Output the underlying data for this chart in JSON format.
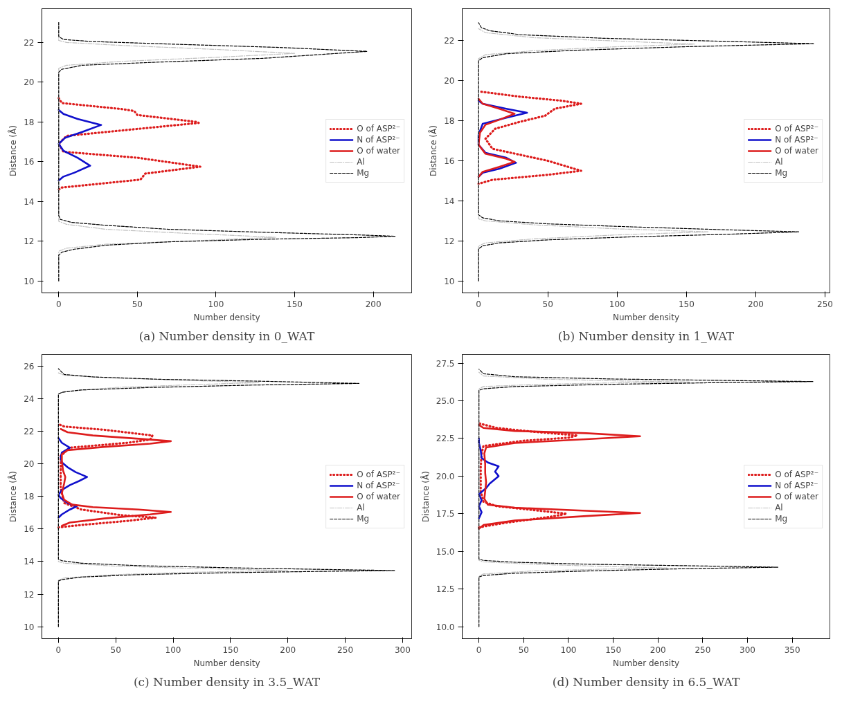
{
  "chart_data": [
    {
      "type": "line",
      "title": "(a) Number density in 0_WAT",
      "xlabel": "Number density",
      "ylabel": "Distance (Å)",
      "xlim": [
        -10.7,
        224.4
      ],
      "ylim": [
        9.4,
        23.7
      ],
      "xticks": [
        0,
        50,
        100,
        150,
        200
      ],
      "yticks": [
        10,
        12,
        14,
        16,
        18,
        20,
        22
      ],
      "grid": false,
      "legend": "right",
      "series": [
        {
          "name": "O of ASP²⁻",
          "color": "#dd1c1c",
          "line_style": "dotted",
          "x": [
            0,
            2,
            40,
            48,
            50,
            88,
            89,
            5,
            0,
            3,
            50,
            90,
            55,
            52,
            2,
            0
          ],
          "values": [
            19.2,
            18.95,
            18.65,
            18.55,
            18.35,
            18.0,
            17.95,
            17.3,
            16.9,
            16.5,
            16.2,
            15.75,
            15.4,
            15.1,
            14.7,
            14.6
          ]
        },
        {
          "name": "N of ASP²⁻",
          "color": "#1010cc",
          "line_style": "solid",
          "x": [
            0,
            3,
            12,
            27,
            15,
            4,
            0,
            3,
            12,
            20,
            10,
            3,
            0
          ],
          "values": [
            18.6,
            18.4,
            18.15,
            17.85,
            17.5,
            17.2,
            16.9,
            16.55,
            16.2,
            15.8,
            15.45,
            15.25,
            15.05
          ]
        },
        {
          "name": "O of water",
          "color": "#dd1c1c",
          "line_style": "solid"
        },
        {
          "name": "Al",
          "color": "#bfbfbf",
          "line_style": "dashdot",
          "x": [
            0,
            0,
            5,
            30,
            80,
            138,
            80,
            30,
            5,
            0,
            0,
            5,
            40,
            100,
            150,
            100,
            40,
            5,
            0,
            0
          ],
          "values": [
            10,
            11.5,
            11.65,
            11.85,
            12.0,
            12.2,
            12.4,
            12.6,
            12.85,
            13.0,
            20.7,
            20.85,
            21.05,
            21.25,
            21.45,
            21.65,
            21.85,
            22.0,
            22.1,
            23.0
          ]
        },
        {
          "name": "Mg",
          "color": "#000000",
          "line_style": "dashed",
          "x": [
            0,
            0,
            2,
            10,
            30,
            70,
            130,
            190,
            214,
            190,
            130,
            70,
            30,
            8,
            1,
            0,
            0,
            2,
            15,
            60,
            130,
            196,
            140,
            70,
            20,
            3,
            0,
            0
          ],
          "values": [
            10,
            11.3,
            11.45,
            11.6,
            11.8,
            11.97,
            12.1,
            12.18,
            12.25,
            12.32,
            12.45,
            12.6,
            12.8,
            12.95,
            13.1,
            13.3,
            20.5,
            20.65,
            20.85,
            21.0,
            21.2,
            21.55,
            21.75,
            21.92,
            22.05,
            22.15,
            22.3,
            23.0
          ]
        }
      ]
    },
    {
      "type": "line",
      "title": "(b) Number density in 1_WAT",
      "xlabel": "Number density",
      "ylabel": "Distance (Å)",
      "xlim": [
        -11.8,
        253.5
      ],
      "ylim": [
        9.4,
        23.6
      ],
      "xticks": [
        0,
        50,
        100,
        150,
        200,
        250
      ],
      "yticks": [
        10,
        12,
        14,
        16,
        18,
        20,
        22
      ],
      "grid": false,
      "legend": "right",
      "series": [
        {
          "name": "O of ASP²⁻",
          "color": "#dd1c1c",
          "line_style": "dotted",
          "x": [
            2,
            30,
            60,
            74,
            55,
            48,
            30,
            12,
            5,
            10,
            30,
            50,
            74,
            50,
            10,
            0
          ],
          "values": [
            19.45,
            19.2,
            19.0,
            18.85,
            18.6,
            18.25,
            17.95,
            17.6,
            17.1,
            16.6,
            16.3,
            16.0,
            15.5,
            15.3,
            15.05,
            14.85
          ]
        },
        {
          "name": "N of ASP²⁻",
          "color": "#1010cc",
          "line_style": "solid",
          "x": [
            0,
            3,
            20,
            35,
            20,
            3,
            0,
            0,
            5,
            20,
            27,
            15,
            3,
            0
          ],
          "values": [
            19.0,
            18.85,
            18.6,
            18.4,
            18.15,
            17.85,
            17.3,
            16.8,
            16.4,
            16.15,
            15.9,
            15.6,
            15.4,
            15.2
          ]
        },
        {
          "name": "O of water",
          "color": "#dd1c1c",
          "line_style": "solid",
          "x": [
            0,
            3,
            15,
            26,
            15,
            5,
            1,
            0,
            5,
            20,
            26,
            15,
            3,
            0
          ],
          "values": [
            19.1,
            18.85,
            18.6,
            18.35,
            18.05,
            17.8,
            17.4,
            16.8,
            16.35,
            16.1,
            15.95,
            15.7,
            15.45,
            15.2
          ]
        },
        {
          "name": "Al",
          "color": "#bfbfbf",
          "line_style": "dashdot",
          "x": [
            0,
            0,
            5,
            40,
            100,
            166,
            100,
            40,
            5,
            0,
            0,
            5,
            40,
            100,
            156,
            100,
            40,
            5,
            0
          ],
          "values": [
            10,
            11.75,
            11.9,
            12.1,
            12.3,
            12.45,
            12.6,
            12.8,
            13.0,
            13.1,
            21.1,
            21.3,
            21.5,
            21.7,
            21.83,
            21.98,
            22.15,
            22.4,
            22.6
          ]
        },
        {
          "name": "Mg",
          "color": "#000000",
          "line_style": "dashed",
          "x": [
            0,
            0,
            3,
            15,
            50,
            110,
            180,
            231,
            180,
            110,
            50,
            15,
            3,
            0,
            0,
            3,
            20,
            70,
            150,
            242,
            170,
            90,
            30,
            8,
            2,
            0
          ],
          "values": [
            10,
            11.6,
            11.75,
            11.9,
            12.05,
            12.2,
            12.33,
            12.45,
            12.55,
            12.7,
            12.85,
            13.0,
            13.15,
            13.3,
            21.0,
            21.15,
            21.35,
            21.52,
            21.7,
            21.85,
            21.98,
            22.12,
            22.3,
            22.5,
            22.65,
            22.9
          ]
        }
      ]
    },
    {
      "type": "line",
      "title": "(c) Number density in 3.5_WAT",
      "xlabel": "Number density",
      "ylabel": "Distance (Å)",
      "xlim": [
        -14.4,
        307.9
      ],
      "ylim": [
        9.26,
        26.73
      ],
      "xticks": [
        0,
        50,
        100,
        150,
        200,
        250,
        300
      ],
      "yticks": [
        10,
        12,
        14,
        16,
        18,
        20,
        22,
        24,
        26
      ],
      "grid": false,
      "legend": "right",
      "series": [
        {
          "name": "O of ASP²⁻",
          "color": "#dd1c1c",
          "line_style": "dotted",
          "x": [
            0,
            20,
            60,
            85,
            55,
            20,
            5,
            2,
            2,
            2,
            10,
            60,
            80,
            82,
            40,
            5,
            0
          ],
          "values": [
            16.1,
            16.25,
            16.5,
            16.7,
            16.85,
            17.2,
            17.6,
            18.5,
            19.5,
            20.5,
            21.0,
            21.3,
            21.5,
            21.75,
            22.1,
            22.3,
            22.45
          ]
        },
        {
          "name": "N of ASP²⁻",
          "color": "#1010cc",
          "line_style": "solid",
          "x": [
            0,
            3,
            10,
            16,
            8,
            2,
            0,
            3,
            10,
            18,
            25,
            15,
            8,
            3,
            2,
            3,
            10,
            3,
            0
          ],
          "values": [
            16.7,
            16.9,
            17.2,
            17.4,
            17.6,
            17.9,
            18.1,
            18.4,
            18.7,
            18.95,
            19.2,
            19.5,
            19.8,
            20.1,
            20.4,
            20.7,
            21.0,
            21.3,
            21.6
          ]
        },
        {
          "name": "O of water",
          "color": "#dd1c1c",
          "line_style": "solid",
          "x": [
            3,
            10,
            40,
            80,
            98,
            70,
            30,
            12,
            5,
            3,
            5,
            6,
            4,
            3,
            3,
            8,
            40,
            80,
            98,
            70,
            30,
            8,
            2
          ],
          "values": [
            16.2,
            16.4,
            16.65,
            16.9,
            17.05,
            17.2,
            17.35,
            17.5,
            17.8,
            18.2,
            18.8,
            19.2,
            19.6,
            20.2,
            20.6,
            20.85,
            21.05,
            21.25,
            21.4,
            21.55,
            21.75,
            21.95,
            22.15
          ]
        },
        {
          "name": "Al",
          "color": "#bfbfbf",
          "line_style": "dashdot",
          "x": [
            0,
            0,
            5,
            50,
            120,
            200,
            120,
            50,
            5,
            0,
            0,
            5,
            50,
            120,
            175,
            120,
            50,
            5,
            0
          ],
          "values": [
            10,
            12.85,
            13.0,
            13.2,
            13.35,
            13.45,
            13.58,
            13.72,
            13.9,
            14.0,
            24.3,
            24.45,
            24.7,
            24.88,
            25.0,
            25.12,
            25.28,
            25.45,
            25.6
          ]
        },
        {
          "name": "Mg",
          "color": "#000000",
          "line_style": "dashed",
          "x": [
            0,
            0,
            3,
            20,
            70,
            150,
            230,
            293,
            230,
            150,
            70,
            20,
            3,
            0,
            0,
            3,
            20,
            80,
            170,
            262,
            180,
            90,
            30,
            5,
            0
          ],
          "values": [
            10,
            12.8,
            12.9,
            13.05,
            13.2,
            13.32,
            13.4,
            13.45,
            13.52,
            13.62,
            13.75,
            13.9,
            14.05,
            14.15,
            24.3,
            24.4,
            24.55,
            24.7,
            24.85,
            24.95,
            25.08,
            25.2,
            25.35,
            25.5,
            25.85
          ]
        }
      ]
    },
    {
      "type": "line",
      "title": "(d) Number density in 6.5_WAT",
      "xlabel": "Number density",
      "ylabel": "Distance (Å)",
      "xlim": [
        -18.7,
        392
      ],
      "ylim": [
        9.2,
        28.08
      ],
      "xticks": [
        0,
        50,
        100,
        150,
        200,
        250,
        300,
        350
      ],
      "yticks": [
        {
          "value": 10,
          "label": "10.0"
        },
        12.5,
        {
          "value": 15,
          "label": "15.0"
        },
        17.5,
        {
          "value": 20,
          "label": "20.0"
        },
        22.5,
        {
          "value": 25,
          "label": "25.0"
        },
        27.5
      ],
      "grid": false,
      "legend": "right",
      "series": [
        {
          "name": "O of ASP²⁻",
          "color": "#dd1c1c",
          "line_style": "dotted",
          "x": [
            0,
            30,
            80,
            98,
            60,
            20,
            5,
            2,
            2,
            2,
            3,
            5,
            50,
            100,
            110,
            60,
            20,
            0
          ],
          "values": [
            16.6,
            16.9,
            17.3,
            17.5,
            17.75,
            18.0,
            18.3,
            19.0,
            19.8,
            20.6,
            21.5,
            22.0,
            22.35,
            22.55,
            22.7,
            22.95,
            23.2,
            23.5
          ]
        },
        {
          "name": "N of ASP²⁻",
          "color": "#1010cc",
          "line_style": "solid",
          "x": [
            0,
            3,
            0,
            3,
            0,
            8,
            12,
            22,
            18,
            22,
            10,
            3,
            2,
            0,
            0
          ],
          "values": [
            17.2,
            17.6,
            18.0,
            18.4,
            18.8,
            19.2,
            19.5,
            20.0,
            20.3,
            20.65,
            20.9,
            21.2,
            21.7,
            22.2,
            22.5
          ]
        },
        {
          "name": "O of water",
          "color": "#dd1c1c",
          "line_style": "solid",
          "x": [
            0,
            5,
            40,
            120,
            180,
            120,
            40,
            10,
            6,
            7,
            8,
            7,
            7,
            6,
            8,
            40,
            120,
            180,
            120,
            40,
            5,
            0
          ],
          "values": [
            16.5,
            16.75,
            17.05,
            17.35,
            17.55,
            17.7,
            17.9,
            18.1,
            18.5,
            19.0,
            19.6,
            20.2,
            20.8,
            21.5,
            21.9,
            22.2,
            22.45,
            22.65,
            22.85,
            23.0,
            23.2,
            23.4
          ]
        },
        {
          "name": "Al",
          "color": "#bfbfbf",
          "line_style": "dashdot",
          "x": [
            0,
            0,
            5,
            60,
            140,
            210,
            140,
            60,
            5,
            0,
            0,
            5,
            70,
            160,
            235,
            160,
            70,
            5,
            0
          ],
          "values": [
            10,
            13.35,
            13.5,
            13.7,
            13.82,
            13.9,
            14.0,
            14.15,
            14.3,
            14.4,
            25.8,
            25.95,
            26.1,
            26.2,
            26.25,
            26.32,
            26.45,
            26.65,
            26.9
          ]
        },
        {
          "name": "Mg",
          "color": "#000000",
          "line_style": "dashed",
          "x": [
            0,
            0,
            5,
            40,
            120,
            230,
            334,
            230,
            120,
            40,
            5,
            0,
            0,
            5,
            40,
            150,
            280,
            373,
            280,
            150,
            40,
            5,
            0
          ],
          "values": [
            10,
            13.3,
            13.4,
            13.55,
            13.7,
            13.85,
            13.95,
            14.05,
            14.15,
            14.28,
            14.4,
            14.5,
            25.7,
            25.8,
            25.95,
            26.1,
            26.22,
            26.28,
            26.35,
            26.45,
            26.6,
            26.8,
            27.1
          ]
        }
      ]
    }
  ]
}
